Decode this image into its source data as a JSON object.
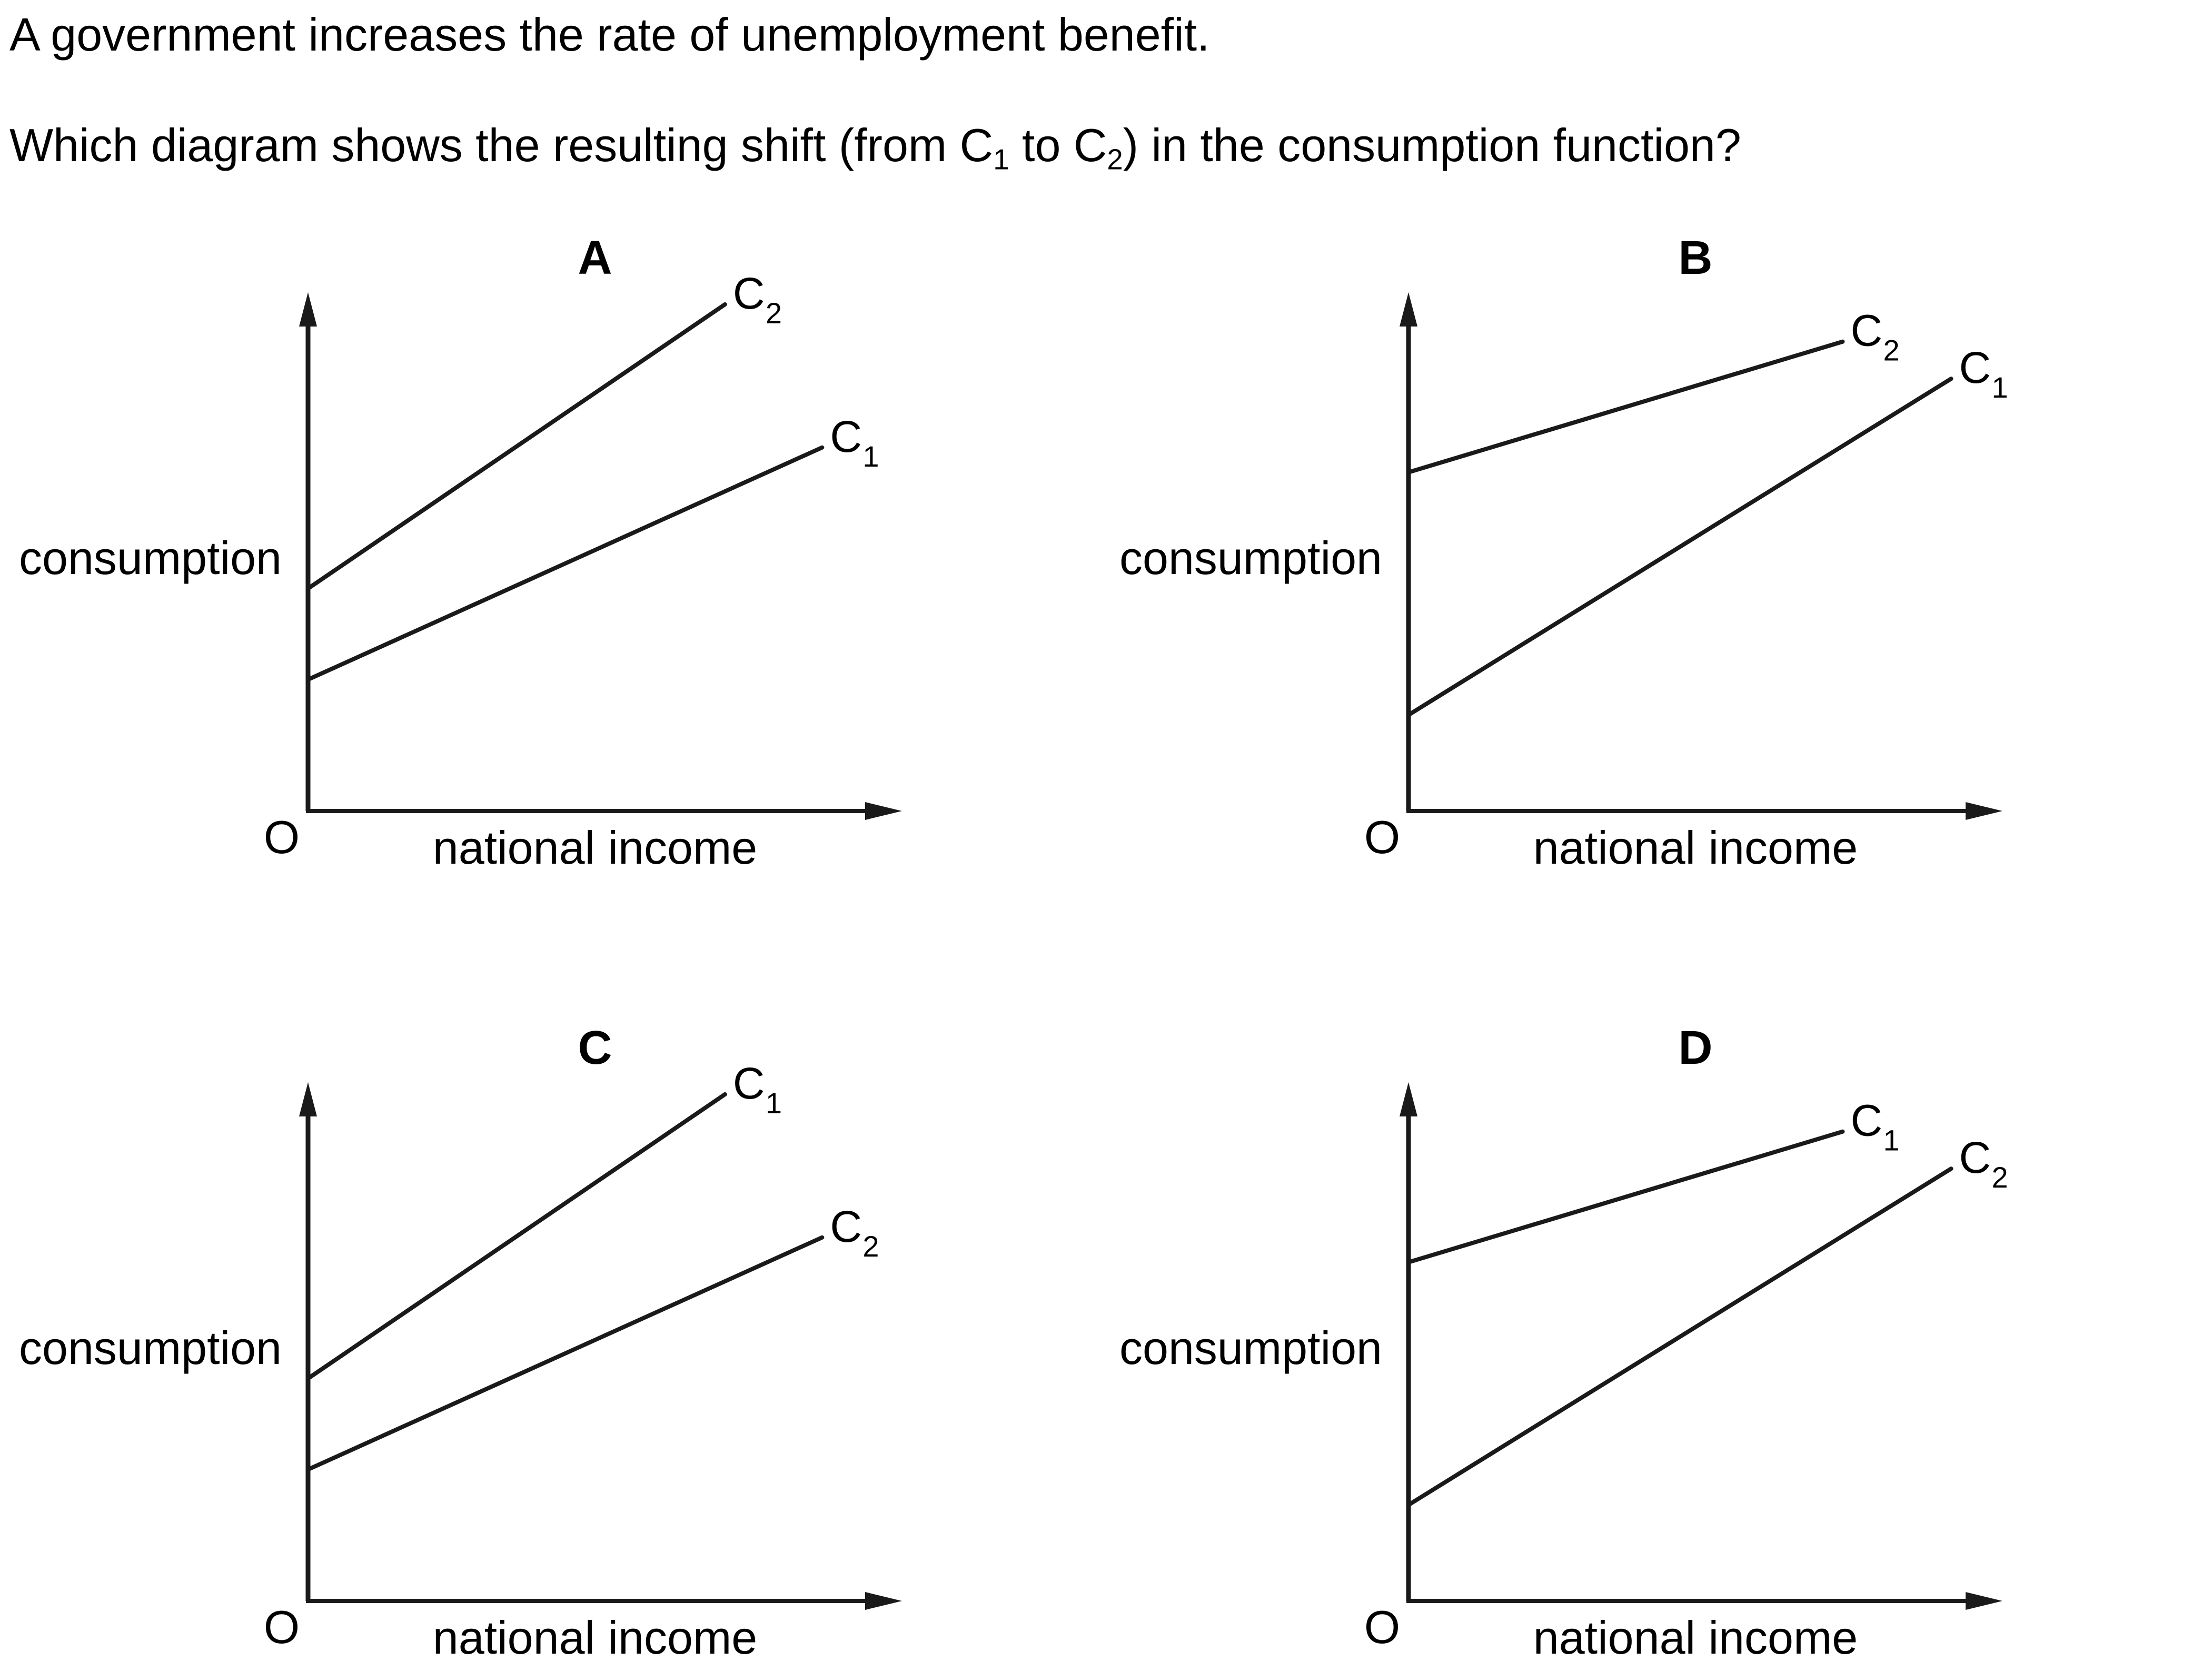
{
  "question": {
    "line1": "A government increases the rate of unemployment benefit.",
    "line2_before": "Which diagram shows the resulting shift (from C",
    "sub1": "1",
    "line2_mid": " to C",
    "sub2": "2",
    "line2_after": ") in the consumption function?"
  },
  "diagram_common": {
    "y_axis_label": "consumption",
    "x_axis_label": "national income",
    "origin_label": "O",
    "curve_letter": "C"
  },
  "chart_data": [
    {
      "type": "line",
      "option": "A",
      "series": [
        {
          "name": "C2",
          "intercept": 0.44,
          "slope": 0.77,
          "x_end": 0.73
        },
        {
          "name": "C1",
          "intercept": 0.26,
          "slope": 0.51,
          "x_end": 0.9
        }
      ]
    },
    {
      "type": "line",
      "option": "B",
      "series": [
        {
          "name": "C2",
          "intercept": 0.67,
          "slope": 0.34,
          "x_end": 0.76
        },
        {
          "name": "C1",
          "intercept": 0.19,
          "slope": 0.7,
          "x_end": 0.95
        }
      ]
    },
    {
      "type": "line",
      "option": "C",
      "series": [
        {
          "name": "C1",
          "intercept": 0.44,
          "slope": 0.77,
          "x_end": 0.73
        },
        {
          "name": "C2",
          "intercept": 0.26,
          "slope": 0.51,
          "x_end": 0.9
        }
      ]
    },
    {
      "type": "line",
      "option": "D",
      "series": [
        {
          "name": "C1",
          "intercept": 0.67,
          "slope": 0.34,
          "x_end": 0.76
        },
        {
          "name": "C2",
          "intercept": 0.19,
          "slope": 0.7,
          "x_end": 0.95
        }
      ]
    }
  ]
}
